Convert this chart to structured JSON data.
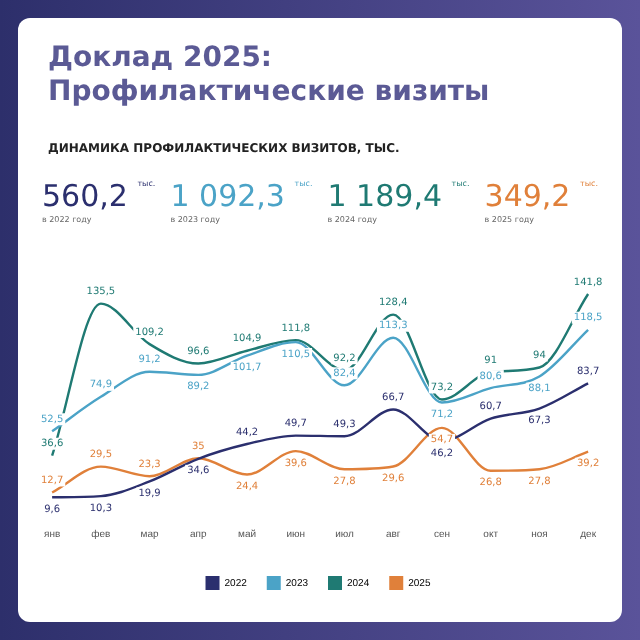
{
  "chart_data": {
    "type": "line",
    "title": "Доклад 2025: Профилактические визиты",
    "subtitle": "ДИНАМИКА ПРОФИЛАКТИЧЕСКИХ ВИЗИТОВ, ТЫС.",
    "annotations": [
      "560,2",
      "тыс.",
      "в 2022 году",
      "1 092,3",
      "тыс.",
      "в 2023 году",
      "1 189,4",
      "тыс.",
      "в 2024 году",
      "349,2",
      "тыс.",
      "в 2025 году"
    ],
    "categories": [
      "янв",
      "фев",
      "мар",
      "апр",
      "май",
      "июн",
      "июл",
      "авг",
      "сен",
      "окт",
      "ноя",
      "дек"
    ],
    "series": [
      {
        "name": "2022",
        "color": "#2b2f6e",
        "values": [
          9.6,
          10.3,
          19.9,
          34.6,
          44.2,
          49.7,
          49.3,
          66.7,
          46.2,
          60.7,
          67.3,
          83.7
        ],
        "value_labels": [
          "9,6",
          "10,3",
          "19,9",
          "34,6",
          "44,2",
          "49,7",
          "49,3",
          "66,7",
          "46,2",
          "60,7",
          "67,3",
          "83,7"
        ]
      },
      {
        "name": "2023",
        "color": "#4ba3c7",
        "values": [
          52.5,
          74.9,
          91.2,
          89.2,
          101.7,
          110.5,
          82.4,
          113.3,
          71.2,
          80.6,
          88.1,
          118.5
        ],
        "value_labels": [
          "52,5",
          "74,9",
          "91,2",
          "89,2",
          "101,7",
          "110,5",
          "82,4",
          "113,3",
          "71,2",
          "80,6",
          "88,1",
          "118,5"
        ]
      },
      {
        "name": "2024",
        "color": "#1f7a73",
        "values": [
          36.6,
          135.5,
          109.2,
          96.6,
          104.9,
          111.8,
          92.2,
          128.4,
          73.2,
          91,
          94,
          141.8
        ],
        "value_labels": [
          "36,6",
          "135,5",
          "109,2",
          "96,6",
          "104,9",
          "111,8",
          "92,2",
          "128,4",
          "73,2",
          "91",
          "94",
          "141,8"
        ]
      },
      {
        "name": "2025",
        "color": "#e0803a",
        "values": [
          12.7,
          29.5,
          23.3,
          35,
          24.4,
          39.6,
          27.8,
          29.6,
          54.7,
          26.8,
          27.8,
          39.2
        ],
        "value_labels": [
          "12,7",
          "29,5",
          "23,3",
          "35",
          "24,4",
          "39,6",
          "27,8",
          "29,6",
          "54,7",
          "26,8",
          "27,8",
          "39,2"
        ]
      }
    ],
    "grid": false,
    "legend": "bottom",
    "marker": "none",
    "line_style": "solid"
  }
}
